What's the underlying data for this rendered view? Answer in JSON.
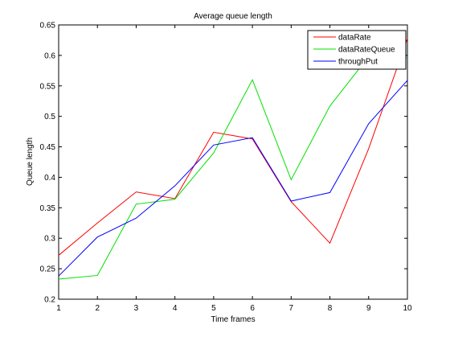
{
  "chart_data": {
    "type": "line",
    "title": "Average queue length",
    "xlabel": "Time frames",
    "ylabel": "Queue length",
    "x": [
      1,
      2,
      3,
      4,
      5,
      6,
      7,
      8,
      9,
      10
    ],
    "xlim": [
      1,
      10
    ],
    "ylim": [
      0.2,
      0.65
    ],
    "xticks": [
      "1",
      "2",
      "3",
      "4",
      "5",
      "6",
      "7",
      "8",
      "9",
      "10"
    ],
    "yticks": [
      "0.2",
      "0.25",
      "0.3",
      "0.35",
      "0.4",
      "0.45",
      "0.5",
      "0.55",
      "0.6",
      "0.65"
    ],
    "grid": false,
    "legend_position": "top-right",
    "series": [
      {
        "name": "dataRate",
        "color": "#ff0000",
        "values": [
          0.272,
          0.325,
          0.376,
          0.365,
          0.474,
          0.463,
          0.36,
          0.292,
          0.447,
          0.628
        ]
      },
      {
        "name": "dataRateQueue",
        "color": "#00e000",
        "values": [
          0.233,
          0.239,
          0.356,
          0.364,
          0.44,
          0.56,
          0.396,
          0.517,
          0.598,
          0.596
        ]
      },
      {
        "name": "throughPut",
        "color": "#0000ff",
        "values": [
          0.238,
          0.302,
          0.333,
          0.386,
          0.453,
          0.465,
          0.361,
          0.375,
          0.488,
          0.559
        ]
      }
    ]
  }
}
